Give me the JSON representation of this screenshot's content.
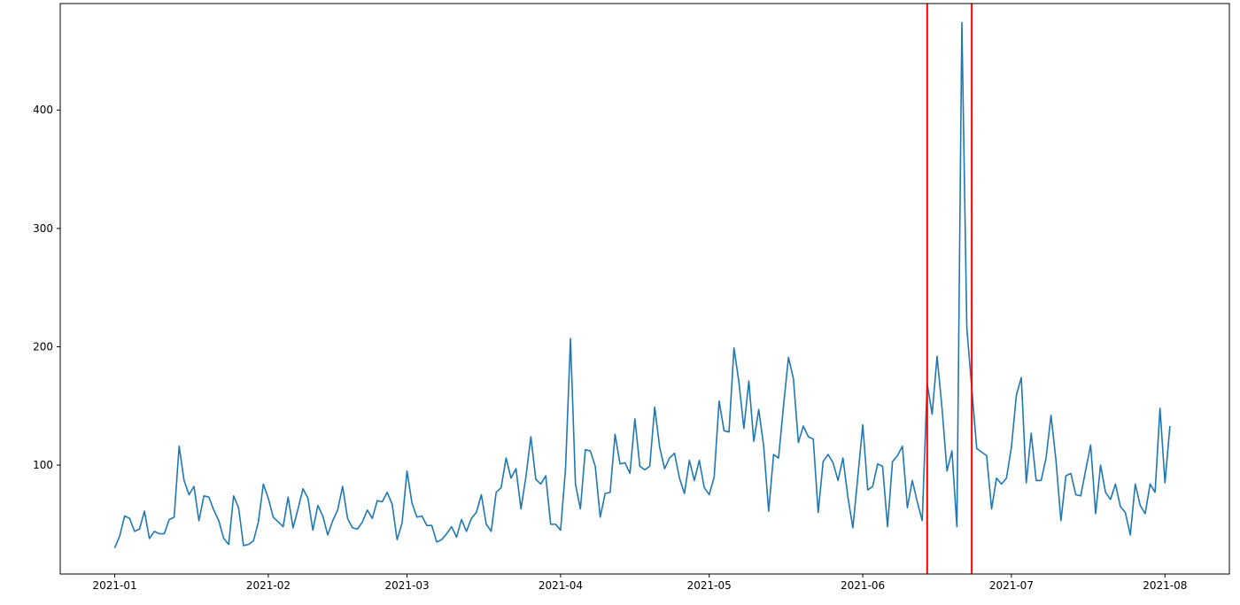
{
  "chart_data": {
    "type": "line",
    "title": "",
    "xlabel": "",
    "ylabel": "",
    "grid": false,
    "legend": "none",
    "x_start": "2021-01-01",
    "x_step_days": 1,
    "xlim": [
      "2020-12-21",
      "2021-08-14"
    ],
    "ylim": [
      8,
      490
    ],
    "x_ticks": [
      {
        "date": "2021-01-01",
        "label": "2021-01"
      },
      {
        "date": "2021-02-01",
        "label": "2021-02"
      },
      {
        "date": "2021-03-01",
        "label": "2021-03"
      },
      {
        "date": "2021-04-01",
        "label": "2021-04"
      },
      {
        "date": "2021-05-01",
        "label": "2021-05"
      },
      {
        "date": "2021-06-01",
        "label": "2021-06"
      },
      {
        "date": "2021-07-01",
        "label": "2021-07"
      },
      {
        "date": "2021-08-01",
        "label": "2021-08"
      }
    ],
    "y_ticks": [
      {
        "value": 100,
        "label": "100"
      },
      {
        "value": 200,
        "label": "200"
      },
      {
        "value": 300,
        "label": "300"
      },
      {
        "value": 400,
        "label": "400"
      }
    ],
    "series": [
      {
        "color": "#1f77b4",
        "values": [
          30,
          40,
          57,
          55,
          44,
          46,
          61,
          38,
          44,
          42,
          42,
          54,
          56,
          116,
          87,
          75,
          82,
          53,
          74,
          73,
          62,
          53,
          38,
          33,
          74,
          64,
          32,
          33,
          36,
          52,
          84,
          72,
          56,
          52,
          48,
          73,
          47,
          63,
          80,
          72,
          45,
          66,
          57,
          41,
          53,
          62,
          82,
          55,
          47,
          46,
          52,
          62,
          55,
          70,
          69,
          77,
          67,
          37,
          51,
          95,
          68,
          56,
          57,
          49,
          49,
          35,
          37,
          42,
          48,
          39,
          54,
          44,
          55,
          60,
          75,
          50,
          44,
          77,
          81,
          106,
          89,
          97,
          63,
          90,
          124,
          88,
          84,
          91,
          50,
          50,
          45,
          97,
          207,
          84,
          63,
          113,
          112,
          99,
          56,
          76,
          77,
          126,
          101,
          102,
          93,
          139,
          99,
          96,
          99,
          149,
          115,
          97,
          106,
          110,
          89,
          76,
          104,
          87,
          104,
          81,
          75,
          90,
          154,
          129,
          128,
          199,
          170,
          131,
          171,
          120,
          147,
          116,
          61,
          109,
          106,
          150,
          191,
          173,
          119,
          133,
          124,
          122,
          60,
          103,
          109,
          102,
          87,
          106,
          73,
          47,
          90,
          134,
          79,
          82,
          101,
          99,
          48,
          103,
          108,
          116,
          64,
          87,
          69,
          53,
          169,
          143,
          192,
          148,
          95,
          112,
          48,
          474,
          216,
          165,
          114,
          111,
          108,
          63,
          89,
          84,
          89,
          115,
          159,
          174,
          85,
          127,
          87,
          87,
          106,
          142,
          104,
          53,
          91,
          93,
          75,
          74,
          96,
          117,
          59,
          100,
          77,
          71,
          84,
          65,
          60,
          41,
          84,
          66,
          59,
          84,
          77,
          148,
          85,
          133
        ]
      }
    ],
    "vertical_lines": [
      {
        "date": "2021-06-14",
        "color": "#ff0000"
      },
      {
        "date": "2021-06-23",
        "color": "#ff0000"
      }
    ]
  }
}
